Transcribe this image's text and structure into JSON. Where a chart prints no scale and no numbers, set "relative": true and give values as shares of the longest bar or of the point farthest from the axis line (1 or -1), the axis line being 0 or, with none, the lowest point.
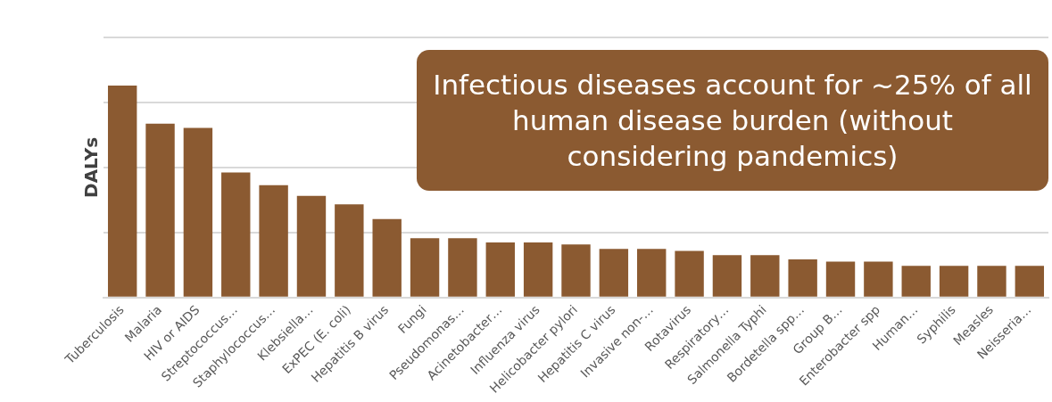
{
  "chart_data": {
    "type": "bar",
    "relative": true,
    "ylabel": "DALYs",
    "color": "#8b5a31",
    "grid": "y",
    "categories": [
      "Tuberculosis",
      "Malaria",
      "HIV or AIDS",
      "Streptococcus…",
      "Staphylococcus…",
      "Klebsiella…",
      "ExPEC (E. coli)",
      "Hepatitis B virus",
      "Fungi",
      "Pseudomonas…",
      "Acinetobacter…",
      "Influenza virus",
      "Helicobacter pylori",
      "Hepatitis C virus",
      "Invasive non-…",
      "Rotavirus",
      "Respiratory…",
      "Salmonella Typhi",
      "Bordetella spp…",
      "Group B…",
      "Enterobacter spp",
      "Human…",
      "Syphilis",
      "Measles",
      "Neisseria…"
    ],
    "values": [
      1,
      0.82,
      0.8,
      0.59,
      0.53,
      0.48,
      0.44,
      0.37,
      0.28,
      0.28,
      0.26,
      0.26,
      0.25,
      0.23,
      0.23,
      0.22,
      0.2,
      0.2,
      0.18,
      0.17,
      0.17,
      0.15,
      0.15,
      0.15,
      0.15
    ],
    "annotations": [
      "Infectious diseases account for ~25% of all human disease burden (without considering pandemics)"
    ]
  }
}
